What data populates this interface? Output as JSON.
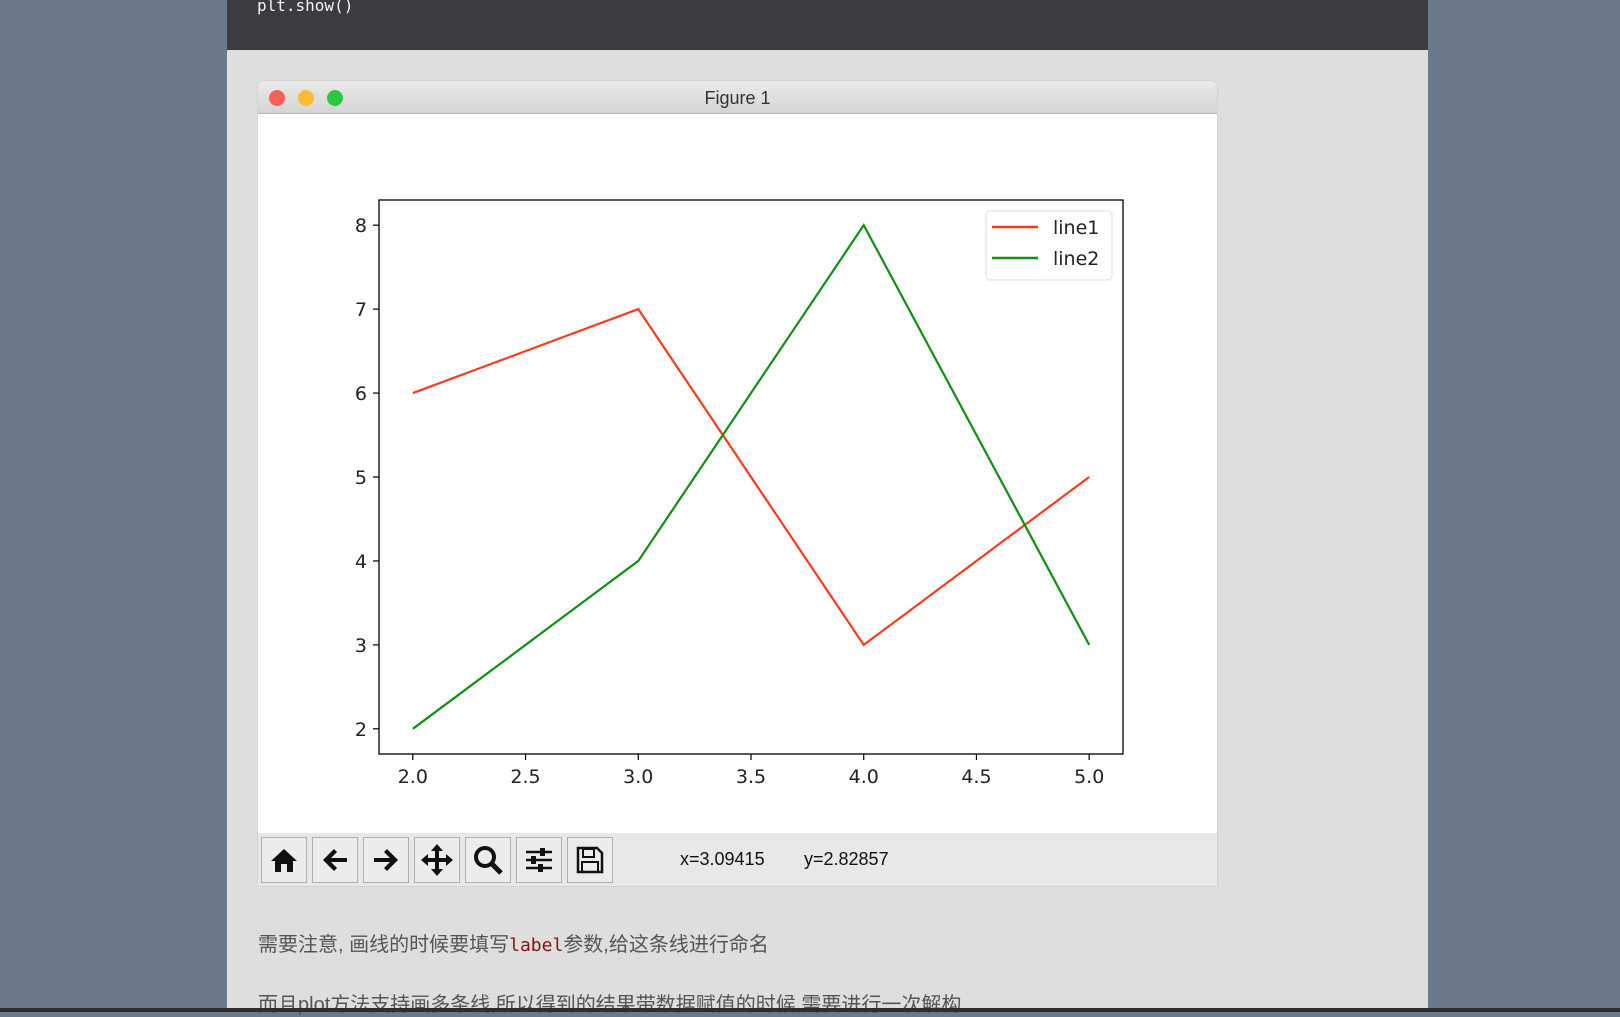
{
  "code": {
    "last_line": "plt.show()"
  },
  "window": {
    "title": "Figure 1"
  },
  "toolbar": {
    "buttons": [
      "home",
      "back",
      "forward",
      "pan",
      "zoom",
      "configure-subplots",
      "save"
    ],
    "x_readout": "x=3.09415",
    "y_readout": "y=2.82857"
  },
  "paragraphs": {
    "p1_before": "需要注意, 画线的时候要填写",
    "p1_code": "label",
    "p1_after": "参数,给这条线进行命名",
    "p2": "而且plot方法支持画多条线,所以得到的结果带数据赋值的时候,需要进行一次解构"
  },
  "chart_data": {
    "type": "line",
    "x": [
      2,
      3,
      4,
      5
    ],
    "series": [
      {
        "name": "line1",
        "values": [
          6,
          7,
          3,
          5
        ],
        "color": "#ff3a1a"
      },
      {
        "name": "line2",
        "values": [
          2,
          4,
          8,
          3
        ],
        "color": "#109010"
      }
    ],
    "xlim": [
      1.85,
      5.15
    ],
    "ylim": [
      1.7,
      8.3
    ],
    "xticks": [
      "2.0",
      "2.5",
      "3.0",
      "3.5",
      "4.0",
      "4.5",
      "5.0"
    ],
    "yticks": [
      "2",
      "3",
      "4",
      "5",
      "6",
      "7",
      "8"
    ],
    "grid": false,
    "legend": "upper right",
    "title": "",
    "xlabel": "",
    "ylabel": ""
  }
}
